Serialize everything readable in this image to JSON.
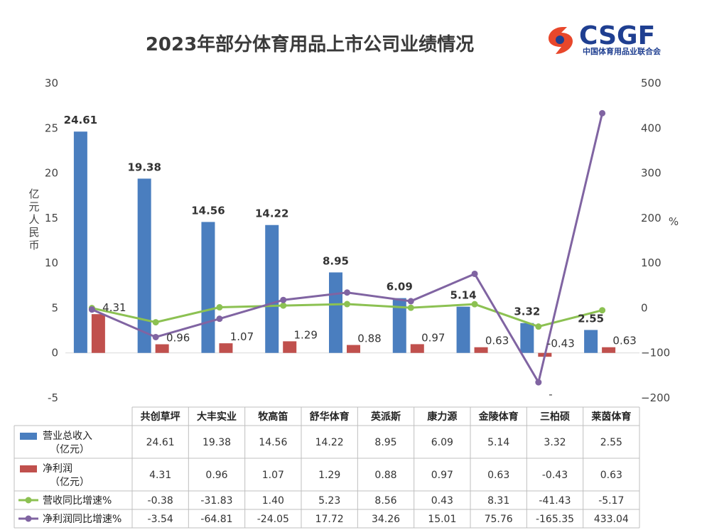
{
  "chart_data": {
    "type": "bar",
    "title": "2023年部分体育用品上市公司业绩情况",
    "categories": [
      "共创草坪",
      "大丰实业",
      "牧高笛",
      "舒华体育",
      "英派斯",
      "康力源",
      "金陵体育",
      "三柏硕",
      "莱茵体育"
    ],
    "ylabel_left": "亿元人民币",
    "ylabel_right": "%",
    "ylim_left": [
      -5,
      30
    ],
    "ylim_right": [
      -200,
      500
    ],
    "yticks_left": [
      "30",
      "25",
      "20",
      "15",
      "10",
      "5",
      "0",
      "-5"
    ],
    "yticks_right": [
      "500",
      "400",
      "300",
      "200",
      "100",
      "0",
      "−100",
      "−200"
    ],
    "series": [
      {
        "name": "营业总收入（亿元）",
        "name_line1": "营业总收入",
        "name_line2": "（亿元）",
        "kind": "bar",
        "axis": "left",
        "color": "#4a7ebf",
        "values": [
          24.61,
          19.38,
          14.56,
          14.22,
          8.95,
          6.09,
          5.14,
          3.32,
          2.55
        ],
        "labels": [
          "24.61",
          "19.38",
          "14.56",
          "14.22",
          "8.95",
          "6.09",
          "5.14",
          "3.32",
          "2.55"
        ]
      },
      {
        "name": "净利润（亿元）",
        "name_line1": "净利润",
        "name_line2": "（亿元）",
        "kind": "bar",
        "axis": "left",
        "color": "#c0504d",
        "values": [
          4.31,
          0.96,
          1.07,
          1.29,
          0.88,
          0.97,
          0.63,
          -0.43,
          0.63
        ],
        "labels": [
          "4.31",
          "0.96",
          "1.07",
          "1.29",
          "0.88",
          "0.97",
          "0.63",
          "-0.43",
          "0.63"
        ]
      },
      {
        "name": "营收同比增速%",
        "name_line1": "营收同比增速%",
        "name_line2": "",
        "kind": "line",
        "axis": "right",
        "color": "#8cc152",
        "values": [
          -0.38,
          -31.83,
          1.4,
          5.23,
          8.56,
          0.43,
          8.31,
          -41.43,
          -5.17
        ],
        "labels": [
          "-0.38",
          "-31.83",
          "1.40",
          "5.23",
          "8.56",
          "0.43",
          "8.31",
          "-41.43",
          "-5.17"
        ]
      },
      {
        "name": "净利润同比增速%",
        "name_line1": "净利润同比增速%",
        "name_line2": "",
        "kind": "line",
        "axis": "right",
        "color": "#8064a2",
        "values": [
          -3.54,
          -64.81,
          -24.05,
          17.72,
          34.26,
          15.01,
          75.76,
          -165.35,
          433.04
        ],
        "labels": [
          "-3.54",
          "-64.81",
          "-24.05",
          "17.72",
          "34.26",
          "15.01",
          "75.76",
          "-165.35",
          "433.04"
        ]
      }
    ],
    "stray_label": "-"
  },
  "logo": {
    "text": "CSGF",
    "subtitle": "中国体育用品业联合会",
    "colors": {
      "primary": "#1f3f91",
      "accent": "#e8472b"
    }
  }
}
